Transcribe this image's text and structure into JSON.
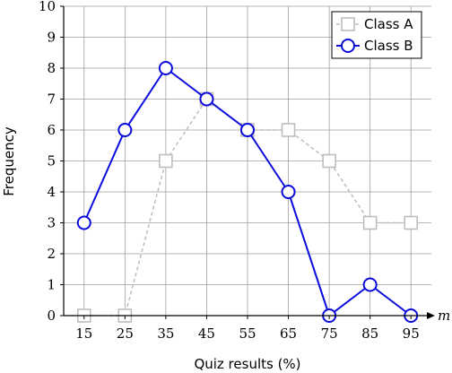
{
  "chart_data": {
    "type": "line",
    "xlabel": "Quiz results (%)",
    "ylabel": "Frequency",
    "x_axis_variable": "m",
    "x": [
      15,
      25,
      35,
      45,
      55,
      65,
      75,
      85,
      95
    ],
    "x_ticks": [
      "15",
      "25",
      "35",
      "45",
      "55",
      "65",
      "75",
      "85",
      "95"
    ],
    "xlim": [
      10,
      100
    ],
    "ylim": [
      0,
      10
    ],
    "y_ticks": [
      "0",
      "1",
      "2",
      "3",
      "4",
      "5",
      "6",
      "7",
      "8",
      "9",
      "10"
    ],
    "grid": true,
    "legend_position": "top-right",
    "series": [
      {
        "name": "Class A",
        "values": [
          0,
          0,
          5,
          7,
          6,
          6,
          5,
          3,
          3
        ],
        "color": "#bdbdbd",
        "marker": "square",
        "line": "dashed"
      },
      {
        "name": "Class B",
        "values": [
          3,
          6,
          8,
          7,
          6,
          4,
          0,
          1,
          0
        ],
        "color": "#0a0adc",
        "marker": "circle",
        "line": "solid"
      }
    ]
  }
}
